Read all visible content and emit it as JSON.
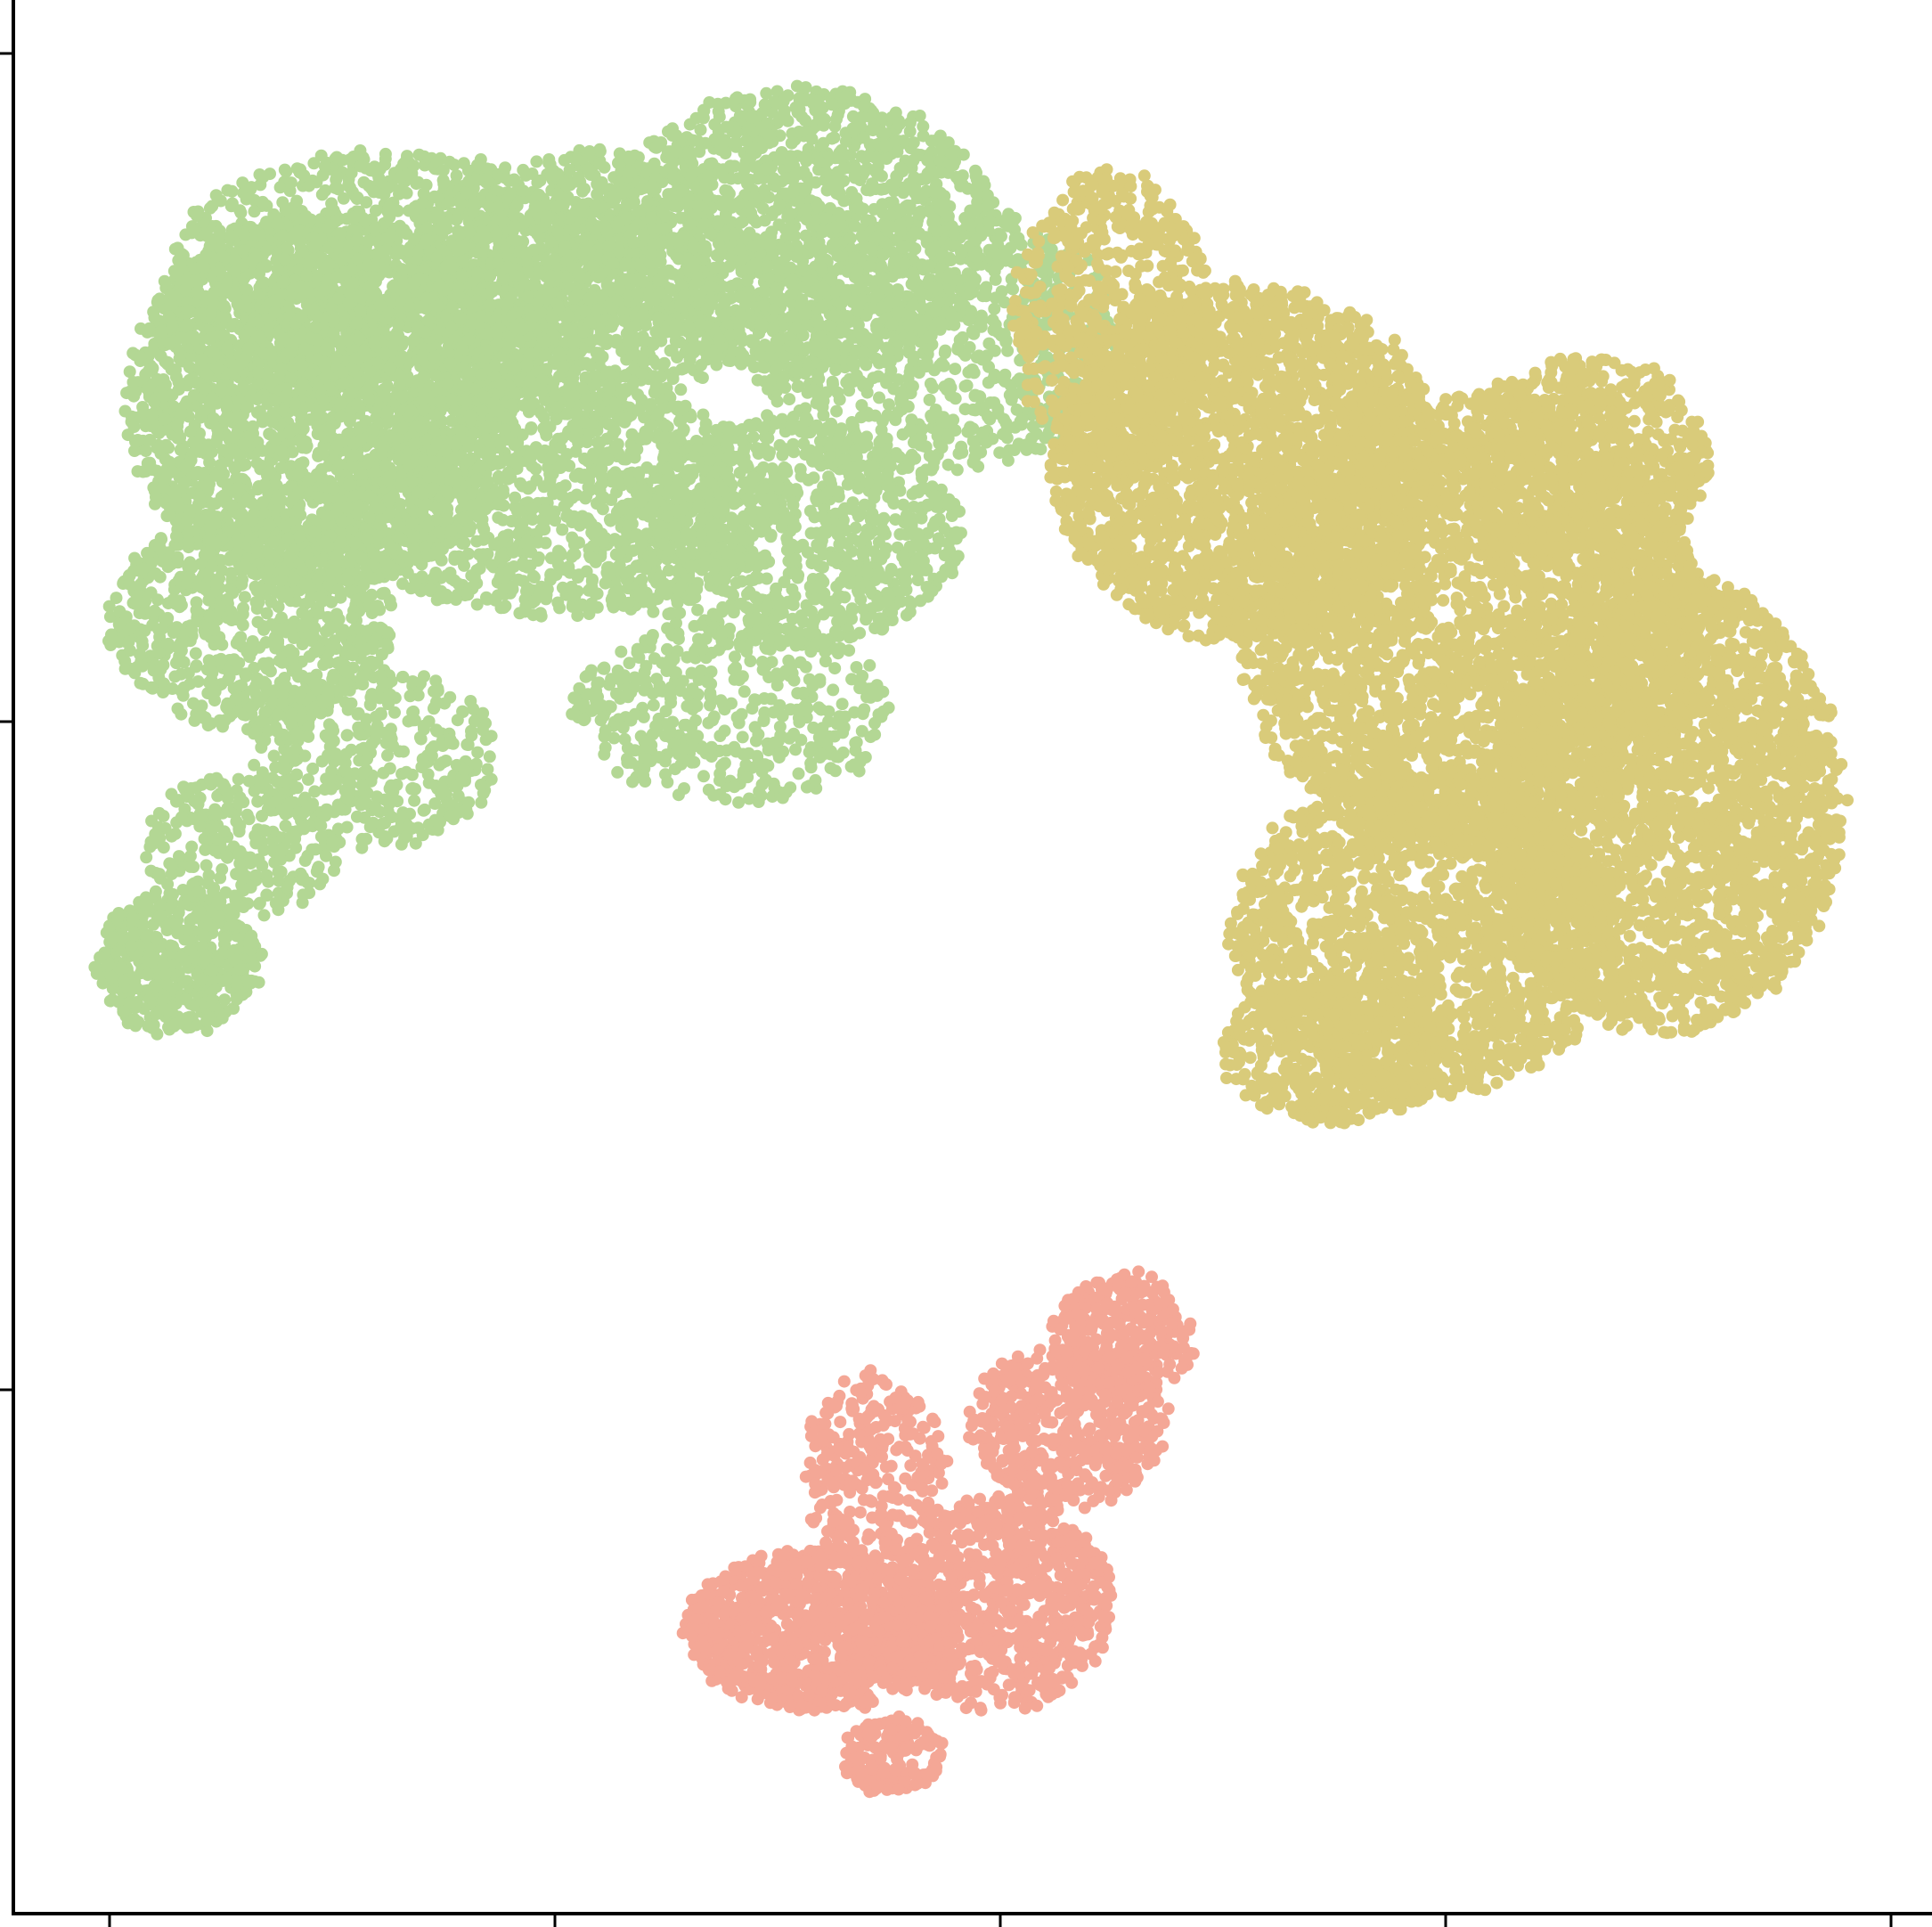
{
  "chart_data": {
    "type": "scatter",
    "title": "",
    "xlabel": "",
    "ylabel": "",
    "xlim": [
      -0.2,
      4.0
    ],
    "ylim": [
      -0.45,
      2.8
    ],
    "xticks": [
      0,
      1,
      2,
      3,
      4
    ],
    "yticks": [
      0,
      1,
      2
    ],
    "tick_labels_visible": false,
    "grid": false,
    "legend": "none",
    "spines": [
      "left",
      "bottom"
    ],
    "colors": [
      "#b3d794",
      "#d9cb7a",
      "#f4a796"
    ],
    "clusters": [
      {
        "color": "#b3d794",
        "region": "upper-left",
        "center": [
          1.1,
          2.12
        ],
        "spread": [
          0.72,
          0.34
        ],
        "approx_points": 12000
      },
      {
        "color": "#d9cb7a",
        "region": "right",
        "center": [
          2.85,
          1.72
        ],
        "spread": [
          0.62,
          0.44
        ],
        "approx_points": 14000
      },
      {
        "color": "#f4a796",
        "region": "bottom-center",
        "center": [
          1.65,
          0.45
        ],
        "spread": [
          0.32,
          0.3
        ],
        "approx_points": 3000
      }
    ]
  }
}
